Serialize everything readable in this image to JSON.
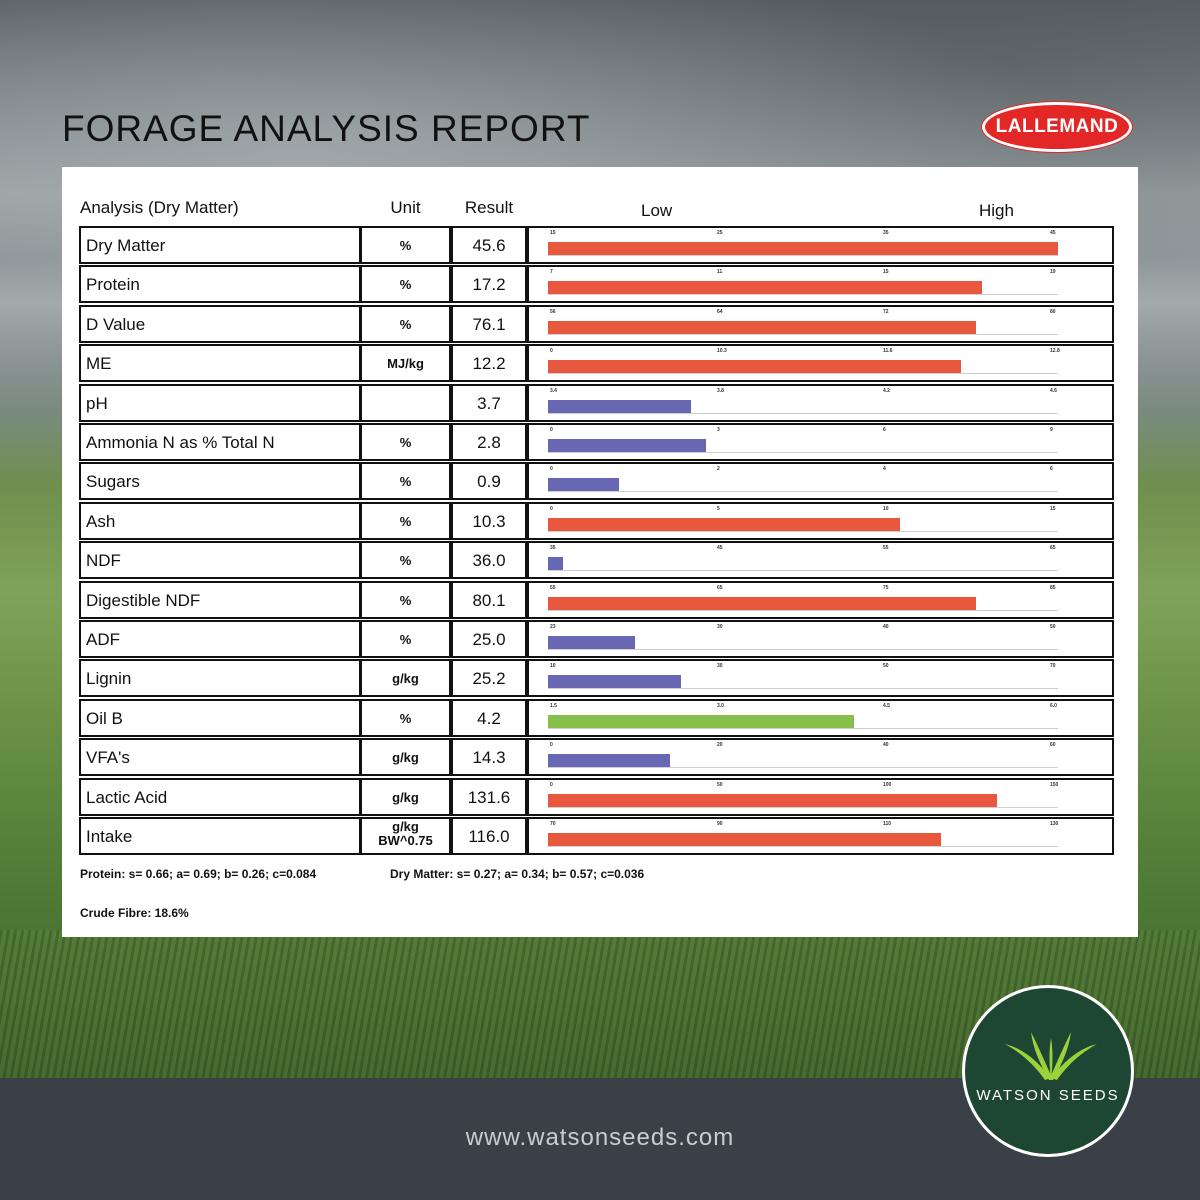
{
  "header": {
    "title": "FORAGE ANALYSIS REPORT",
    "brand_logo": "LALLEMAND"
  },
  "table": {
    "col_analysis": "Analysis (Dry Matter)",
    "col_unit": "Unit",
    "col_result": "Result",
    "scale_low": "Low",
    "scale_high": "High"
  },
  "colors": {
    "red": "#e8583f",
    "purple": "#6767b3",
    "green": "#86c04b"
  },
  "chart_data": {
    "type": "bar",
    "orientation": "horizontal",
    "categories": [
      "Dry Matter",
      "Protein",
      "D Value",
      "ME",
      "pH",
      "Ammonia N as % Total N",
      "Sugars",
      "Ash",
      "NDF",
      "Digestible NDF",
      "ADF",
      "Lignin",
      "Oil B",
      "VFA's",
      "Lactic Acid",
      "Intake"
    ],
    "units": [
      "%",
      "%",
      "%",
      "MJ/kg",
      "",
      "%",
      "%",
      "%",
      "%",
      "%",
      "%",
      "g/kg",
      "%",
      "g/kg",
      "g/kg",
      "g/kg BW^0.75"
    ],
    "values": [
      45.6,
      17.2,
      76.1,
      12.2,
      3.7,
      2.8,
      0.9,
      10.3,
      36.0,
      80.1,
      25.0,
      25.2,
      4.2,
      14.3,
      131.6,
      116.0
    ],
    "results": [
      "45.6",
      "17.2",
      "76.1",
      "12.2",
      "3.7",
      "2.8",
      "0.9",
      "10.3",
      "36.0",
      "80.1",
      "25.0",
      "25.2",
      "4.2",
      "14.3",
      "131.6",
      "116.0"
    ],
    "colors": [
      "red",
      "red",
      "red",
      "red",
      "purple",
      "purple",
      "purple",
      "red",
      "purple",
      "red",
      "purple",
      "purple",
      "green",
      "purple",
      "red",
      "red"
    ],
    "ticks": [
      [
        "15",
        "25",
        "35",
        "45"
      ],
      [
        "7",
        "11",
        "15",
        "19"
      ],
      [
        "56",
        "64",
        "72",
        "80"
      ],
      [
        "0",
        "10.3",
        "11.6",
        "12.8"
      ],
      [
        "3.4",
        "3.8",
        "4.2",
        "4.6"
      ],
      [
        "0",
        "3",
        "6",
        "9"
      ],
      [
        "0",
        "2",
        "4",
        "6"
      ],
      [
        "0",
        "5",
        "10",
        "15"
      ],
      [
        "35",
        "45",
        "55",
        "65"
      ],
      [
        "55",
        "65",
        "75",
        "85"
      ],
      [
        "23",
        "30",
        "40",
        "50"
      ],
      [
        "10",
        "30",
        "50",
        "70"
      ],
      [
        "1.5",
        "3.0",
        "4.5",
        "6.0"
      ],
      [
        "0",
        "20",
        "40",
        "60"
      ],
      [
        "0",
        "50",
        "100",
        "150"
      ],
      [
        "70",
        "90",
        "110",
        "130"
      ]
    ],
    "fill_fraction": [
      1.0,
      0.85,
      0.84,
      0.81,
      0.28,
      0.31,
      0.14,
      0.69,
      0.03,
      0.84,
      0.17,
      0.26,
      0.6,
      0.24,
      0.88,
      0.77
    ]
  },
  "notes": {
    "protein": "Protein: s= 0.66; a= 0.69; b= 0.26; c=0.084",
    "dry_matter": "Dry Matter: s= 0.27; a= 0.34; b= 0.57; c=0.036",
    "crude_fibre": "Crude Fibre: 18.6%"
  },
  "footer": {
    "url": "www.watsonseeds.com",
    "logo": "WATSON SEEDS"
  }
}
